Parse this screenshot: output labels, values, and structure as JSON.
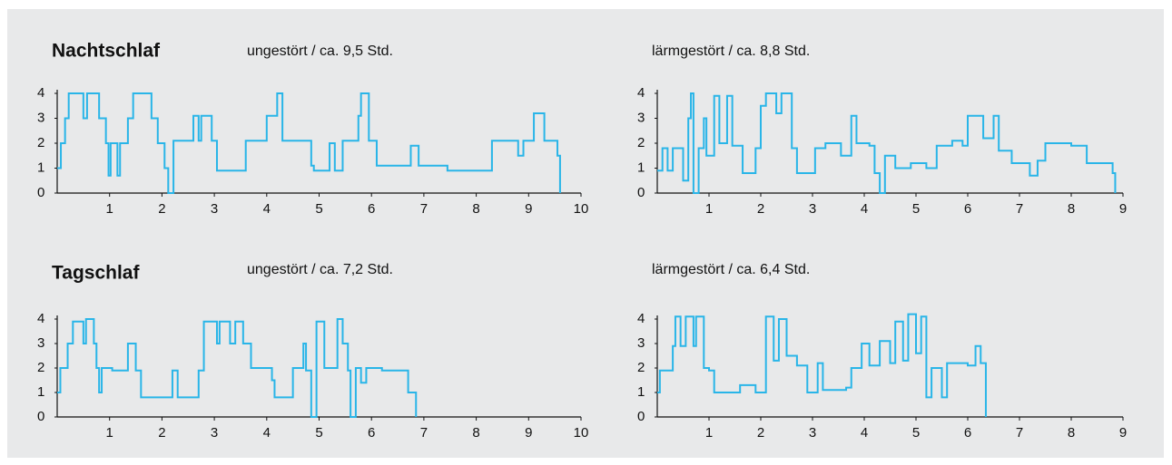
{
  "chart_data": [
    {
      "type": "line",
      "step": true,
      "title": "Nachtschlaf",
      "subtitle": "ungestört / ca. 9,5 Std.",
      "color": "#29b5e8",
      "x": [
        0,
        0.07,
        0.15,
        0.22,
        0.5,
        0.57,
        0.8,
        0.93,
        0.98,
        1.02,
        1.15,
        1.2,
        1.35,
        1.45,
        1.8,
        1.92,
        2.05,
        2.12,
        2.22,
        2.6,
        2.7,
        2.75,
        2.95,
        3.05,
        3.6,
        4.0,
        4.2,
        4.3,
        4.85,
        4.9,
        5.2,
        5.3,
        5.45,
        5.75,
        5.8,
        5.95,
        6.1,
        6.75,
        6.9,
        7.45,
        8.3,
        8.8,
        8.9,
        9.1,
        9.3,
        9.55,
        9.6
      ],
      "values": [
        1,
        2,
        3,
        4,
        3,
        4,
        3,
        2,
        0.7,
        2,
        0.7,
        2,
        3,
        4,
        3,
        2,
        1,
        0,
        2.1,
        3.1,
        2.1,
        3.1,
        2.1,
        0.9,
        2.1,
        3.1,
        4,
        2.1,
        1.1,
        0.9,
        2,
        0.9,
        2.1,
        3.1,
        4,
        2.1,
        1.1,
        1.9,
        1.1,
        0.9,
        2.1,
        1.5,
        2.1,
        3.2,
        2.1,
        1.5,
        0
      ],
      "xlim": [
        0,
        10
      ],
      "xticks": [
        1,
        2,
        3,
        4,
        5,
        6,
        7,
        8,
        9,
        10
      ],
      "ylim": [
        0,
        4
      ],
      "yticks": [
        0,
        1,
        2,
        3,
        4
      ]
    },
    {
      "type": "line",
      "step": true,
      "subtitle": "lärmgestört / ca. 8,8 Std.",
      "color": "#29b5e8",
      "x": [
        0,
        0.1,
        0.2,
        0.3,
        0.5,
        0.6,
        0.65,
        0.7,
        0.8,
        0.9,
        0.95,
        1.1,
        1.2,
        1.35,
        1.45,
        1.65,
        1.9,
        2.0,
        2.1,
        2.3,
        2.4,
        2.6,
        2.7,
        3.05,
        3.25,
        3.55,
        3.75,
        3.85,
        4.1,
        4.2,
        4.3,
        4.4,
        4.6,
        4.9,
        5.2,
        5.4,
        5.7,
        5.9,
        6.0,
        6.3,
        6.5,
        6.6,
        6.85,
        7.2,
        7.35,
        7.5,
        8.0,
        8.3,
        8.8,
        8.85
      ],
      "values": [
        0.9,
        1.8,
        0.9,
        1.8,
        0.5,
        3,
        4,
        0,
        1.8,
        3,
        1.5,
        3.9,
        2,
        3.9,
        1.9,
        0.8,
        1.8,
        3.5,
        4,
        3.2,
        4,
        1.8,
        0.8,
        1.8,
        2,
        1.5,
        3.1,
        2,
        1.9,
        0.8,
        0,
        1.5,
        1,
        1.2,
        1,
        1.9,
        2.1,
        1.9,
        3.1,
        2.2,
        3.1,
        1.7,
        1.2,
        0.7,
        1.3,
        2,
        1.9,
        1.2,
        0.8,
        0
      ],
      "xlim": [
        0,
        9
      ],
      "xticks": [
        1,
        2,
        3,
        4,
        5,
        6,
        7,
        8,
        9
      ],
      "ylim": [
        0,
        4
      ],
      "yticks": [
        0,
        1,
        2,
        3,
        4
      ]
    },
    {
      "type": "line",
      "step": true,
      "title": "Tagschlaf",
      "subtitle": "ungestört / ca. 7,2 Std.",
      "color": "#29b5e8",
      "x": [
        0,
        0.06,
        0.2,
        0.3,
        0.5,
        0.55,
        0.7,
        0.75,
        0.8,
        0.85,
        1.05,
        1.35,
        1.5,
        1.6,
        2.2,
        2.3,
        2.7,
        2.8,
        3.05,
        3.1,
        3.3,
        3.4,
        3.55,
        3.7,
        4.1,
        4.15,
        4.5,
        4.7,
        4.75,
        4.85,
        4.95,
        5.1,
        5.35,
        5.45,
        5.55,
        5.6,
        5.7,
        5.8,
        5.9,
        6.2,
        6.7,
        6.85
      ],
      "values": [
        1,
        2,
        3,
        3.9,
        3,
        4,
        3,
        2,
        1,
        2,
        1.9,
        3,
        1.9,
        0.8,
        1.9,
        0.8,
        1.9,
        3.9,
        3,
        3.9,
        3,
        3.9,
        3,
        2,
        1.5,
        0.8,
        2,
        3,
        1.9,
        0,
        3.9,
        2,
        4,
        3,
        1.9,
        0,
        2,
        1.4,
        2,
        1.9,
        1,
        0
      ],
      "xlim": [
        0,
        10
      ],
      "xticks": [
        1,
        2,
        3,
        4,
        5,
        6,
        7,
        8,
        9,
        10
      ],
      "ylim": [
        0,
        4
      ],
      "yticks": [
        0,
        1,
        2,
        3,
        4
      ]
    },
    {
      "type": "line",
      "step": true,
      "subtitle": "lärmgestört / ca. 6,4 Std.",
      "color": "#29b5e8",
      "x": [
        0,
        0.05,
        0.3,
        0.35,
        0.45,
        0.55,
        0.7,
        0.75,
        0.9,
        1.0,
        1.1,
        1.6,
        1.9,
        2.1,
        2.25,
        2.35,
        2.5,
        2.7,
        2.9,
        3.1,
        3.2,
        3.65,
        3.75,
        3.95,
        4.1,
        4.3,
        4.5,
        4.6,
        4.75,
        4.85,
        5.0,
        5.1,
        5.2,
        5.3,
        5.5,
        5.6,
        6.0,
        6.15,
        6.25,
        6.35
      ],
      "values": [
        1,
        1.9,
        2.9,
        4.1,
        2.9,
        4.1,
        2.9,
        4.1,
        2,
        1.9,
        1,
        1.3,
        1,
        4.1,
        2.3,
        4,
        2.5,
        2.1,
        1,
        2.2,
        1.1,
        1.2,
        2,
        3,
        2.1,
        3.1,
        2.2,
        3.9,
        2.3,
        4.2,
        2.6,
        4.1,
        0.8,
        2,
        0.8,
        2.2,
        2.1,
        2.9,
        2.2,
        0
      ],
      "xlim": [
        0,
        9
      ],
      "xticks": [
        1,
        2,
        3,
        4,
        5,
        6,
        7,
        8,
        9
      ],
      "ylim": [
        0,
        4
      ],
      "yticks": [
        0,
        1,
        2,
        3,
        4
      ]
    }
  ]
}
